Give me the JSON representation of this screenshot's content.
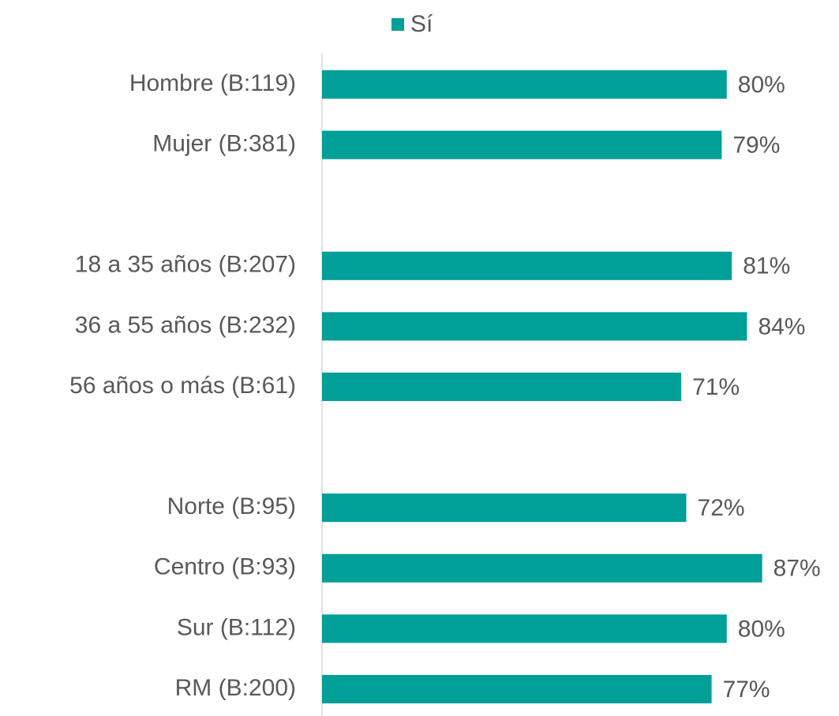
{
  "chart_data": {
    "type": "bar",
    "orientation": "horizontal",
    "categories": [
      "Hombre (B:119)",
      "Mujer (B:381)",
      null,
      "18 a 35 años (B:207)",
      "36 a 55 años (B:232)",
      "56 años o más (B:61)",
      null,
      "Norte (B:95)",
      "Centro (B:93)",
      "Sur (B:112)",
      "RM (B:200)"
    ],
    "series": [
      {
        "name": "Sí",
        "color": "#009f98",
        "values": [
          80,
          79,
          null,
          81,
          84,
          71,
          null,
          72,
          87,
          80,
          77
        ],
        "value_labels": [
          "80%",
          "79%",
          null,
          "81%",
          "84%",
          "71%",
          null,
          "72%",
          "87%",
          "80%",
          "77%"
        ]
      }
    ],
    "legend": "top"
  }
}
